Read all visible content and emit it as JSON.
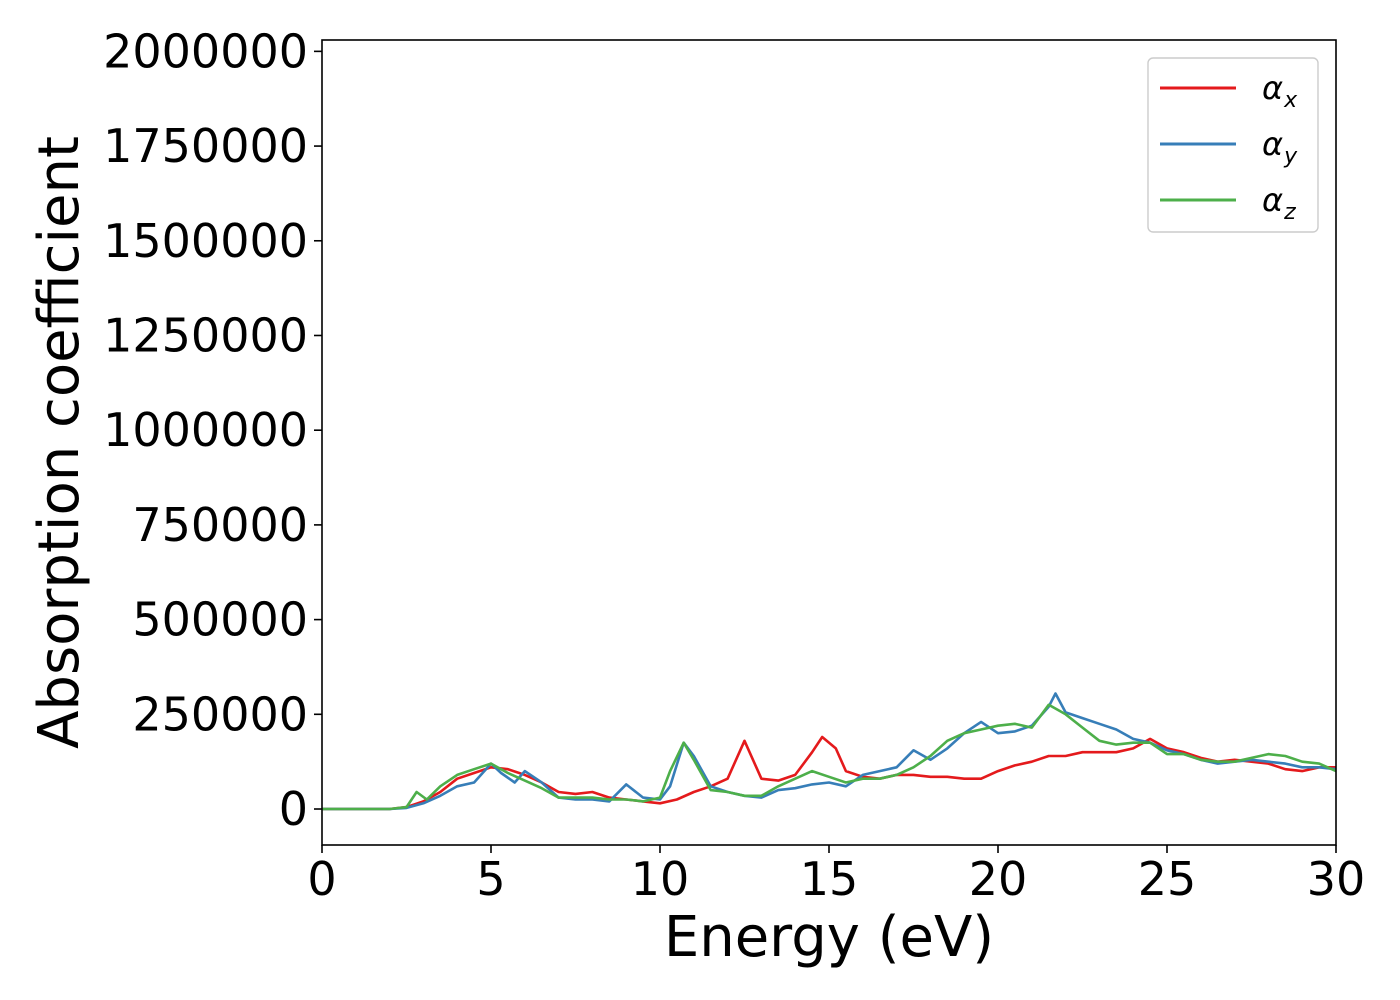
{
  "chart_data": {
    "type": "line",
    "xlabel": "Energy (eV)",
    "ylabel": "Absorption coefficient",
    "xlim": [
      0,
      30
    ],
    "ylim": [
      -95000,
      2030000
    ],
    "x_ticks": [
      0,
      5,
      10,
      15,
      20,
      25,
      30
    ],
    "x_tick_labels": [
      "0",
      "5",
      "10",
      "15",
      "20",
      "25",
      "30"
    ],
    "y_ticks": [
      0,
      250000,
      500000,
      750000,
      1000000,
      1250000,
      1500000,
      1750000,
      2000000
    ],
    "y_tick_labels": [
      "0",
      "250000",
      "500000",
      "750000",
      "1000000",
      "1250000",
      "1500000",
      "1750000",
      "2000000"
    ],
    "grid": false,
    "legend": {
      "placement": "top-right",
      "entries": [
        {
          "symbol": "α",
          "subscript": "x",
          "color": "#e41a1c"
        },
        {
          "symbol": "α",
          "subscript": "y",
          "color": "#377eb8"
        },
        {
          "symbol": "α",
          "subscript": "z",
          "color": "#4daf4a"
        }
      ]
    },
    "series": [
      {
        "color": "#e41a1c",
        "x": [
          0,
          1,
          2,
          2.5,
          3,
          3.5,
          4,
          4.5,
          5,
          5.5,
          6,
          6.5,
          7,
          7.5,
          8,
          8.5,
          9,
          9.5,
          10,
          10.5,
          11,
          11.5,
          12,
          12.5,
          13,
          13.5,
          14,
          14.5,
          14.8,
          15.2,
          15.5,
          16,
          16.5,
          17,
          17.5,
          18,
          18.5,
          19,
          19.5,
          20,
          20.5,
          21,
          21.5,
          22,
          22.5,
          23,
          23.5,
          24,
          24.5,
          25,
          25.5,
          26,
          26.5,
          27,
          27.5,
          28,
          28.5,
          29,
          29.5,
          30
        ],
        "y": [
          0,
          0,
          0,
          5000,
          20000,
          45000,
          80000,
          95000,
          110000,
          105000,
          90000,
          70000,
          45000,
          40000,
          45000,
          30000,
          25000,
          20000,
          15000,
          25000,
          45000,
          60000,
          80000,
          180000,
          80000,
          75000,
          90000,
          150000,
          190000,
          160000,
          100000,
          85000,
          80000,
          90000,
          90000,
          85000,
          85000,
          80000,
          80000,
          100000,
          115000,
          125000,
          140000,
          140000,
          150000,
          150000,
          150000,
          160000,
          185000,
          160000,
          150000,
          135000,
          125000,
          130000,
          125000,
          120000,
          105000,
          100000,
          110000,
          110000
        ]
      },
      {
        "color": "#377eb8",
        "x": [
          0,
          1,
          2,
          2.5,
          3,
          3.5,
          4,
          4.5,
          5,
          5.3,
          5.7,
          6,
          6.5,
          7,
          7.5,
          8,
          8.5,
          9,
          9.5,
          10,
          10.3,
          10.7,
          11,
          11.5,
          12,
          12.5,
          13,
          13.5,
          14,
          14.5,
          15,
          15.5,
          16,
          16.5,
          17,
          17.5,
          18,
          18.5,
          19,
          19.5,
          20,
          20.5,
          21,
          21.5,
          21.7,
          22,
          22.5,
          23,
          23.5,
          24,
          24.5,
          25,
          25.5,
          26,
          26.5,
          27,
          27.5,
          28,
          28.5,
          29,
          29.5,
          30
        ],
        "y": [
          0,
          0,
          0,
          3000,
          15000,
          35000,
          60000,
          70000,
          120000,
          95000,
          70000,
          100000,
          70000,
          30000,
          25000,
          25000,
          20000,
          65000,
          30000,
          25000,
          60000,
          175000,
          140000,
          60000,
          45000,
          35000,
          30000,
          50000,
          55000,
          65000,
          70000,
          60000,
          90000,
          100000,
          110000,
          155000,
          130000,
          160000,
          200000,
          230000,
          200000,
          205000,
          220000,
          270000,
          305000,
          255000,
          240000,
          225000,
          210000,
          185000,
          175000,
          155000,
          145000,
          130000,
          120000,
          125000,
          130000,
          125000,
          120000,
          110000,
          110000,
          105000
        ]
      },
      {
        "color": "#4daf4a",
        "x": [
          0,
          1,
          2,
          2.5,
          2.8,
          3.1,
          3.5,
          4,
          4.5,
          5,
          5.5,
          6,
          6.5,
          7,
          7.5,
          8,
          8.5,
          9,
          9.5,
          10,
          10.3,
          10.7,
          11,
          11.5,
          12,
          12.5,
          13,
          13.5,
          14,
          14.5,
          15,
          15.5,
          16,
          16.5,
          17,
          17.5,
          18,
          18.5,
          19,
          19.5,
          20,
          20.5,
          21,
          21.5,
          22,
          22.5,
          23,
          23.5,
          24,
          24.5,
          25,
          25.5,
          26,
          26.5,
          27,
          27.5,
          28,
          28.5,
          29,
          29.5,
          30
        ],
        "y": [
          0,
          0,
          0,
          5000,
          45000,
          25000,
          60000,
          90000,
          105000,
          120000,
          95000,
          75000,
          55000,
          30000,
          30000,
          30000,
          25000,
          25000,
          20000,
          30000,
          100000,
          175000,
          130000,
          50000,
          45000,
          35000,
          35000,
          60000,
          80000,
          100000,
          85000,
          70000,
          80000,
          80000,
          90000,
          110000,
          140000,
          180000,
          200000,
          210000,
          220000,
          225000,
          215000,
          275000,
          250000,
          215000,
          180000,
          170000,
          175000,
          175000,
          145000,
          145000,
          130000,
          125000,
          125000,
          135000,
          145000,
          140000,
          125000,
          120000,
          100000
        ]
      }
    ]
  }
}
